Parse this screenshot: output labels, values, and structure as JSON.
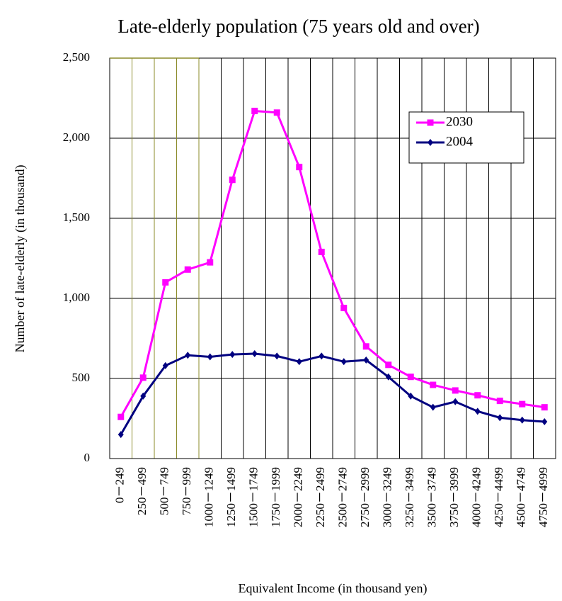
{
  "chart_data": {
    "type": "line",
    "title": "Late-elderly population (75 years old and over)",
    "x_label": "Equivalent Income (in thousand yen)",
    "y_label": "Number of late-elderly (in thousand)",
    "categories": [
      "0－249",
      "250－499",
      "500－749",
      "750－999",
      "1000－1249",
      "1250－1499",
      "1500－1749",
      "1750－1999",
      "2000－2249",
      "2250－2499",
      "2500－2749",
      "2750－2999",
      "3000－3249",
      "3250－3499",
      "3500－3749",
      "3750－3999",
      "4000－4249",
      "4250－4499",
      "4500－4749",
      "4750－4999"
    ],
    "series": [
      {
        "name": "2030",
        "color": "#ff00ff",
        "marker": "square",
        "values": [
          260,
          505,
          1100,
          1180,
          1225,
          1740,
          2170,
          2160,
          1820,
          1290,
          940,
          700,
          585,
          510,
          460,
          425,
          395,
          360,
          340,
          320
        ]
      },
      {
        "name": "2004",
        "color": "#000080",
        "marker": "diamond",
        "values": [
          150,
          390,
          580,
          645,
          635,
          650,
          655,
          640,
          605,
          640,
          605,
          615,
          510,
          390,
          320,
          355,
          295,
          255,
          240,
          230
        ]
      }
    ],
    "ylim": [
      0,
      2500
    ],
    "yticks": [
      0,
      500,
      {
        "value": 1000,
        "label": "1,000"
      },
      {
        "value": 1500,
        "label": "1,500"
      },
      {
        "value": 2000,
        "label": "2,000"
      },
      {
        "value": 2500,
        "label": "2,500"
      }
    ],
    "grid": true,
    "legend": "upper right"
  }
}
